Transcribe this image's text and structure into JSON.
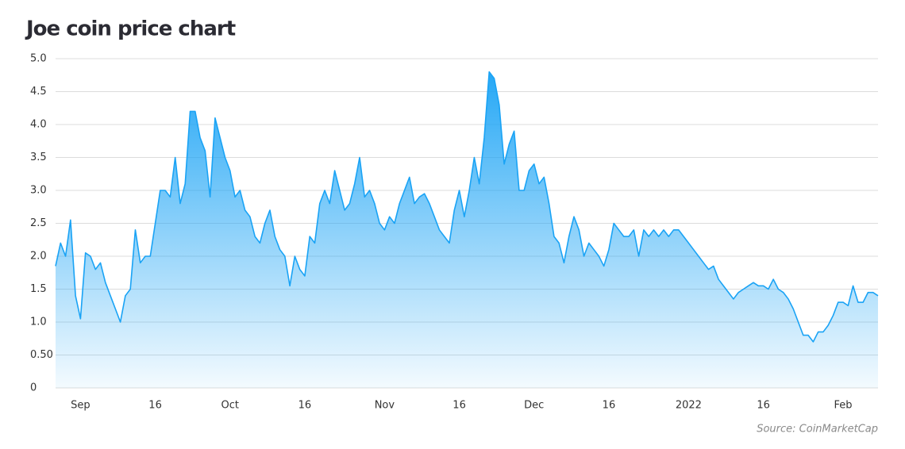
{
  "chart_data": {
    "type": "area",
    "title": "Joe coin price chart",
    "source": "Source: CoinMarketCap",
    "color": "#1aa3f5",
    "grid": true,
    "ylim": [
      0,
      5
    ],
    "yticks": [
      0,
      {
        "value": 0.5,
        "label": "0.50"
      },
      {
        "value": 1,
        "label": "1.0"
      },
      {
        "value": 1.5,
        "label": "1.5"
      },
      {
        "value": 2,
        "label": "2.0"
      },
      {
        "value": 2.5,
        "label": "2.5"
      },
      {
        "value": 3,
        "label": "3.0"
      },
      {
        "value": 3.5,
        "label": "3.5"
      },
      {
        "value": 4,
        "label": "4.0"
      },
      {
        "value": 4.5,
        "label": "4.5"
      },
      {
        "value": 5,
        "label": "5.0"
      }
    ],
    "categories": [
      null,
      null,
      null,
      null,
      null,
      "Sep",
      null,
      null,
      null,
      null,
      null,
      null,
      null,
      null,
      null,
      null,
      null,
      null,
      null,
      null,
      "16",
      null,
      null,
      null,
      null,
      null,
      null,
      null,
      null,
      null,
      null,
      null,
      null,
      null,
      null,
      "Oct",
      null,
      null,
      null,
      null,
      null,
      null,
      null,
      null,
      null,
      null,
      null,
      null,
      null,
      null,
      "16",
      null,
      null,
      null,
      null,
      null,
      null,
      null,
      null,
      null,
      null,
      null,
      null,
      null,
      null,
      null,
      "Nov",
      null,
      null,
      null,
      null,
      null,
      null,
      null,
      null,
      null,
      null,
      null,
      null,
      null,
      null,
      "16",
      null,
      null,
      null,
      null,
      null,
      null,
      null,
      null,
      null,
      null,
      null,
      null,
      null,
      null,
      "Dec",
      null,
      null,
      null,
      null,
      null,
      null,
      null,
      null,
      null,
      null,
      null,
      null,
      null,
      null,
      "16",
      null,
      null,
      null,
      null,
      null,
      null,
      null,
      null,
      null,
      null,
      null,
      null,
      null,
      null,
      null,
      "2022",
      null,
      null,
      null,
      null,
      null,
      null,
      null,
      null,
      null,
      null,
      null,
      null,
      null,
      null,
      "16",
      null,
      null,
      null,
      null,
      null,
      null,
      null,
      null,
      null,
      null,
      null,
      null,
      null,
      null,
      null,
      "Feb",
      null,
      null,
      null,
      null,
      null,
      null,
      null
    ],
    "values": [
      1.85,
      2.2,
      2.0,
      2.55,
      1.4,
      1.05,
      2.05,
      2.0,
      1.8,
      1.9,
      1.6,
      1.4,
      1.2,
      1.0,
      1.4,
      1.5,
      2.4,
      1.9,
      2.0,
      2.0,
      2.5,
      3.0,
      3.0,
      2.9,
      3.5,
      2.8,
      3.1,
      4.2,
      4.2,
      3.8,
      3.6,
      2.9,
      4.1,
      3.8,
      3.5,
      3.3,
      2.9,
      3.0,
      2.7,
      2.6,
      2.3,
      2.2,
      2.5,
      2.7,
      2.3,
      2.1,
      2.0,
      1.55,
      2.0,
      1.8,
      1.7,
      2.3,
      2.2,
      2.8,
      3.0,
      2.8,
      3.3,
      3.0,
      2.7,
      2.8,
      3.1,
      3.5,
      2.9,
      3.0,
      2.8,
      2.5,
      2.4,
      2.6,
      2.5,
      2.8,
      3.0,
      3.2,
      2.8,
      2.9,
      2.95,
      2.8,
      2.6,
      2.4,
      2.3,
      2.2,
      2.7,
      3.0,
      2.6,
      3.0,
      3.5,
      3.1,
      3.8,
      4.8,
      4.7,
      4.3,
      3.4,
      3.7,
      3.9,
      3.0,
      3.0,
      3.3,
      3.4,
      3.1,
      3.2,
      2.8,
      2.3,
      2.2,
      1.9,
      2.3,
      2.6,
      2.4,
      2.0,
      2.2,
      2.1,
      2.0,
      1.85,
      2.1,
      2.5,
      2.4,
      2.3,
      2.3,
      2.4,
      2.0,
      2.4,
      2.3,
      2.4,
      2.3,
      2.4,
      2.3,
      2.4,
      2.4,
      2.3,
      2.2,
      2.1,
      2.0,
      1.9,
      1.8,
      1.85,
      1.65,
      1.55,
      1.45,
      1.35,
      1.45,
      1.5,
      1.55,
      1.6,
      1.55,
      1.55,
      1.5,
      1.65,
      1.5,
      1.45,
      1.35,
      1.2,
      1.0,
      0.8,
      0.8,
      0.7,
      0.85,
      0.85,
      0.95,
      1.1,
      1.3,
      1.3,
      1.25,
      1.55,
      1.3,
      1.3,
      1.45,
      1.45,
      1.4
    ]
  }
}
